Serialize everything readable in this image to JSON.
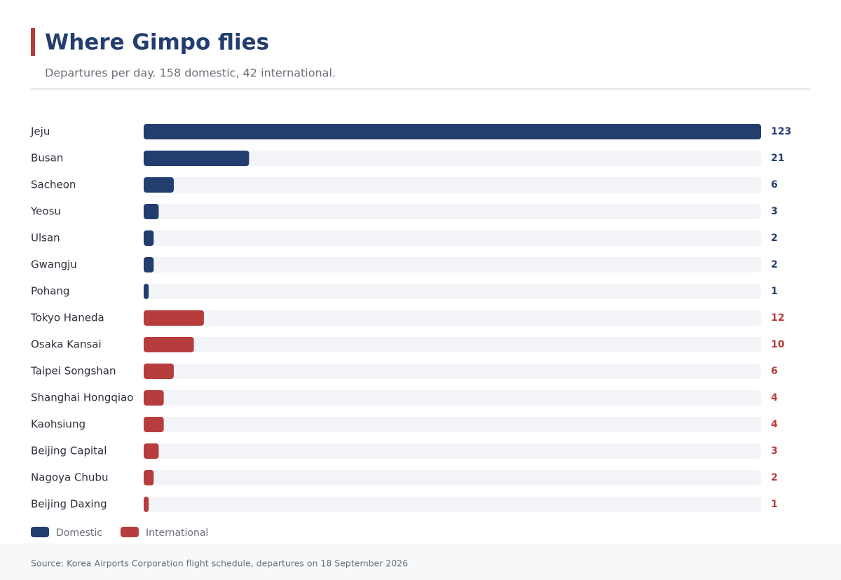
{
  "chart_data": {
    "type": "bar",
    "orientation": "horizontal",
    "title": "Where Gimpo flies",
    "subtitle": "Departures per day. 158 domestic, 42 international.",
    "source": "Source: Korea Airports Corporation flight schedule, departures on 18 September 2026",
    "categories": [
      "Jeju",
      "Busan",
      "Sacheon",
      "Yeosu",
      "Ulsan",
      "Gwangju",
      "Pohang",
      "Tokyo Haneda",
      "Osaka Kansai",
      "Taipei Songshan",
      "Shanghai Hongqiao",
      "Kaohsiung",
      "Beijing Capital",
      "Nagoya Chubu",
      "Beijing Daxing"
    ],
    "series": [
      {
        "name": "Domestic",
        "color": "#233e6e",
        "values": [
          123,
          21,
          6,
          3,
          2,
          2,
          1,
          null,
          null,
          null,
          null,
          null,
          null,
          null,
          null
        ]
      },
      {
        "name": "International",
        "color": "#b73d3d",
        "values": [
          null,
          null,
          null,
          null,
          null,
          null,
          null,
          12,
          10,
          6,
          4,
          4,
          3,
          2,
          1
        ]
      }
    ]
  }
}
